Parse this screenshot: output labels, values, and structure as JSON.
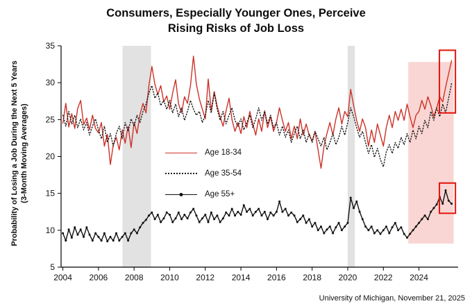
{
  "title": {
    "line1": "Consumers, Especially Younger Ones, Perceive",
    "line2": "Rising Risks of Job Loss"
  },
  "source": "University of Michigan, November 21, 2025",
  "chart_data": {
    "type": "line",
    "title": "Consumers, Especially Younger Ones, Perceive Rising Risks of Job Loss",
    "ylabel_line1": "Probability of Losing a Job During the Next 5 Years",
    "ylabel_line2": "(3-Month Moving Averages)",
    "xlabel": "",
    "xlim": [
      2003.9,
      2026.2
    ],
    "ylim": [
      5,
      35
    ],
    "x_ticks": [
      2004,
      2006,
      2008,
      2010,
      2012,
      2014,
      2016,
      2018,
      2020,
      2022,
      2024
    ],
    "y_ticks": [
      5,
      10,
      15,
      20,
      25,
      30,
      35
    ],
    "grid": false,
    "legend_position": "inside-center-left",
    "x_start": 2004.0,
    "x_step": 0.166667,
    "series": [
      {
        "id": "age-18-34",
        "name": "Age 18-34",
        "color": "#cc3128",
        "style": "solid",
        "values": [
          24.5,
          27.2,
          24.0,
          25.8,
          23.8,
          26.5,
          27.6,
          24.3,
          25.2,
          23.6,
          25.6,
          23.8,
          23.2,
          24.6,
          21.4,
          23.0,
          18.9,
          21.6,
          22.6,
          20.9,
          23.6,
          21.8,
          24.1,
          21.2,
          24.6,
          23.1,
          25.7,
          27.2,
          25.9,
          29.6,
          32.2,
          29.8,
          28.4,
          29.6,
          27.4,
          28.2,
          26.4,
          28.6,
          30.4,
          27.1,
          25.9,
          28.1,
          27.2,
          29.6,
          33.6,
          29.8,
          27.8,
          26.4,
          25.1,
          30.5,
          26.2,
          28.8,
          26.8,
          25.4,
          24.1,
          26.2,
          27.9,
          25.0,
          23.4,
          24.6,
          23.1,
          25.4,
          23.9,
          26.1,
          24.4,
          22.9,
          25.1,
          23.4,
          26.2,
          23.9,
          25.4,
          23.4,
          24.6,
          26.6,
          24.9,
          23.4,
          24.6,
          22.4,
          24.1,
          22.4,
          25.1,
          22.9,
          24.4,
          22.9,
          22.1,
          23.4,
          20.9,
          18.4,
          21.4,
          23.1,
          24.6,
          22.9,
          25.1,
          26.6,
          24.4,
          26.1,
          25.4,
          29.1,
          26.9,
          24.9,
          23.4,
          25.1,
          23.9,
          21.4,
          23.6,
          21.9,
          24.4,
          22.9,
          21.4,
          23.9,
          25.6,
          23.9,
          26.1,
          24.9,
          26.4,
          24.9,
          27.1,
          25.4,
          23.9,
          25.6,
          26.1,
          27.6,
          26.4,
          28.1,
          26.9,
          25.4,
          26.6,
          28.1,
          27.4,
          29.4,
          31.2,
          33.0
        ]
      },
      {
        "id": "age-35-54",
        "name": "Age 35-54",
        "color": "#1a1a1a",
        "style": "dotted",
        "dash": "1.2 2.6",
        "values": [
          25.6,
          24.1,
          26.1,
          24.4,
          25.6,
          23.9,
          25.1,
          23.6,
          24.6,
          22.9,
          24.1,
          25.1,
          23.6,
          22.4,
          24.1,
          21.9,
          23.1,
          21.4,
          23.1,
          24.1,
          22.4,
          24.6,
          23.4,
          25.1,
          24.1,
          25.6,
          24.6,
          26.1,
          27.1,
          28.6,
          29.6,
          27.9,
          28.6,
          26.9,
          27.6,
          26.4,
          27.6,
          25.9,
          27.1,
          25.4,
          26.6,
          24.9,
          26.1,
          27.6,
          26.4,
          25.6,
          26.1,
          24.6,
          25.6,
          27.6,
          25.9,
          28.6,
          26.4,
          24.9,
          26.1,
          24.4,
          25.6,
          26.6,
          24.9,
          24.1,
          25.1,
          23.6,
          24.6,
          25.6,
          23.9,
          25.1,
          26.6,
          24.9,
          26.1,
          24.4,
          25.6,
          23.9,
          24.6,
          22.9,
          24.1,
          22.6,
          23.6,
          21.9,
          23.1,
          24.1,
          22.4,
          23.6,
          21.9,
          23.1,
          21.9,
          23.4,
          22.4,
          21.4,
          22.6,
          20.9,
          21.9,
          23.1,
          21.6,
          22.6,
          24.1,
          22.9,
          24.6,
          26.6,
          25.4,
          23.9,
          22.6,
          23.4,
          21.9,
          20.4,
          21.6,
          19.9,
          21.1,
          19.6,
          18.6,
          20.6,
          21.6,
          20.4,
          21.9,
          21.1,
          22.6,
          21.6,
          23.1,
          21.9,
          23.6,
          22.4,
          24.1,
          23.1,
          24.9,
          23.9,
          26.1,
          24.9,
          26.6,
          25.4,
          27.1,
          25.9,
          27.9,
          29.9
        ]
      },
      {
        "id": "age-55-plus",
        "name": "Age 55+",
        "color": "#111111",
        "style": "solid-markers",
        "markers": true,
        "values": [
          9.6,
          8.6,
          10.1,
          9.0,
          10.4,
          9.4,
          10.1,
          9.1,
          10.4,
          9.4,
          8.6,
          9.6,
          9.1,
          8.6,
          9.6,
          8.5,
          9.1,
          8.6,
          9.6,
          8.6,
          9.1,
          9.6,
          8.6,
          9.6,
          10.1,
          9.6,
          10.4,
          11.0,
          11.4,
          12.0,
          12.4,
          11.5,
          12.1,
          11.1,
          11.6,
          12.4,
          12.1,
          11.1,
          11.6,
          12.4,
          11.5,
          12.1,
          11.6,
          12.4,
          12.9,
          12.0,
          11.1,
          11.6,
          12.1,
          11.1,
          12.4,
          11.5,
          12.0,
          11.1,
          11.6,
          12.4,
          12.0,
          12.9,
          12.0,
          12.5,
          12.1,
          13.4,
          12.5,
          12.9,
          12.0,
          12.5,
          12.9,
          12.0,
          12.5,
          11.5,
          12.4,
          12.0,
          12.5,
          13.9,
          12.5,
          12.9,
          12.0,
          12.4,
          12.0,
          11.1,
          11.5,
          12.0,
          11.0,
          11.5,
          10.5,
          11.0,
          10.0,
          10.5,
          9.6,
          10.1,
          10.5,
          9.6,
          10.4,
          11.0,
          10.0,
          10.5,
          11.0,
          14.4,
          13.0,
          13.9,
          12.5,
          11.5,
          10.5,
          10.0,
          10.5,
          9.6,
          10.0,
          9.5,
          10.0,
          10.5,
          9.6,
          10.4,
          11.0,
          10.0,
          10.4,
          9.5,
          9.0,
          9.5,
          10.0,
          10.5,
          11.0,
          11.5,
          12.0,
          11.5,
          12.5,
          13.0,
          13.5,
          14.5,
          13.6,
          15.4,
          14.0,
          13.6
        ]
      }
    ],
    "annotations": {
      "recession_bands": [
        {
          "x0": 2007.35,
          "x1": 2008.95,
          "color": "#dbdbdb"
        },
        {
          "x0": 2020.0,
          "x1": 2020.4,
          "color": "#dbdbdb"
        }
      ],
      "highlight_region": {
        "x0": 2023.4,
        "x1": 2025.95,
        "y0": 8.2,
        "y1": 32.8,
        "color": "#f9d6d3"
      },
      "callout_boxes": [
        {
          "x0": 2025.15,
          "x1": 2026.05,
          "y0": 25.9,
          "y1": 34.4,
          "color": "#e3120b"
        },
        {
          "x0": 2025.15,
          "x1": 2026.05,
          "y0": 12.3,
          "y1": 16.4,
          "color": "#e3120b"
        }
      ]
    }
  }
}
